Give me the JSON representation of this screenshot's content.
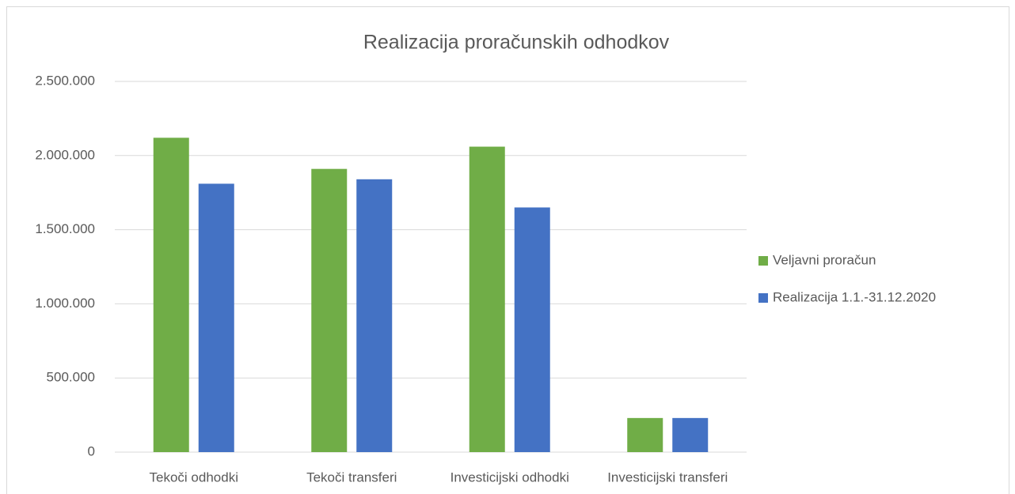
{
  "chart_data": {
    "type": "bar",
    "title": "Realizacija proračunskih odhodkov",
    "categories": [
      "Tekoči odhodki",
      "Tekoči transferi",
      "Investicijski odhodki",
      "Investicijski transferi"
    ],
    "series": [
      {
        "name": "Veljavni proračun",
        "color": "#70ad47",
        "values": [
          2120000,
          1910000,
          2060000,
          230000
        ]
      },
      {
        "name": "Realizacija 1.1.-31.12.2020",
        "color": "#4472c4",
        "values": [
          1810000,
          1840000,
          1650000,
          230000
        ]
      }
    ],
    "ylim": [
      0,
      2500000
    ],
    "yticks": [
      0,
      {
        "value": 500000,
        "label": "500.000"
      },
      {
        "value": 1000000,
        "label": "1.000.000"
      },
      {
        "value": 1500000,
        "label": "1.500.000"
      },
      {
        "value": 2000000,
        "label": "2.000.000"
      },
      {
        "value": 2500000,
        "label": "2.500.000"
      }
    ],
    "grid": true,
    "legend": "right"
  }
}
